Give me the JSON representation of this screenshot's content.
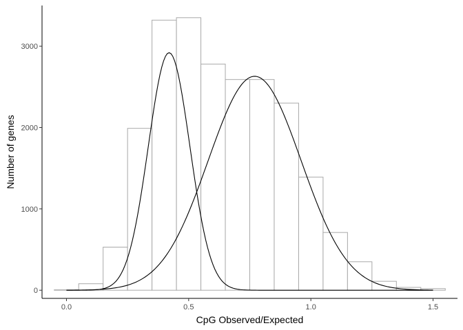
{
  "chart_data": {
    "type": "bar",
    "subtype": "histogram-with-density-curves",
    "title": "",
    "xlabel": "CpG Observed/Expected",
    "ylabel": "Number of genes",
    "xlim": [
      -0.1,
      1.6
    ],
    "ylim": [
      -100,
      3500
    ],
    "x_ticks": [
      {
        "value": 0.0,
        "label": "0.0"
      },
      {
        "value": 0.5,
        "label": "0.5"
      },
      {
        "value": 1.0,
        "label": "1.0"
      },
      {
        "value": 1.5,
        "label": "1.5"
      }
    ],
    "y_ticks": [
      {
        "value": 0,
        "label": "0"
      },
      {
        "value": 1000,
        "label": "1000"
      },
      {
        "value": 2000,
        "label": "2000"
      },
      {
        "value": 3000,
        "label": "3000"
      }
    ],
    "bins": [
      {
        "x0": -0.05,
        "x1": 0.05,
        "count": 5
      },
      {
        "x0": 0.05,
        "x1": 0.15,
        "count": 80
      },
      {
        "x0": 0.15,
        "x1": 0.25,
        "count": 530
      },
      {
        "x0": 0.25,
        "x1": 0.35,
        "count": 1990
      },
      {
        "x0": 0.35,
        "x1": 0.45,
        "count": 3320
      },
      {
        "x0": 0.45,
        "x1": 0.55,
        "count": 3350
      },
      {
        "x0": 0.55,
        "x1": 0.65,
        "count": 2780
      },
      {
        "x0": 0.65,
        "x1": 0.75,
        "count": 2590
      },
      {
        "x0": 0.75,
        "x1": 0.85,
        "count": 2590
      },
      {
        "x0": 0.85,
        "x1": 0.95,
        "count": 2300
      },
      {
        "x0": 0.95,
        "x1": 1.05,
        "count": 1390
      },
      {
        "x0": 1.05,
        "x1": 1.15,
        "count": 710
      },
      {
        "x0": 1.15,
        "x1": 1.25,
        "count": 350
      },
      {
        "x0": 1.25,
        "x1": 1.35,
        "count": 110
      },
      {
        "x0": 1.35,
        "x1": 1.45,
        "count": 35
      },
      {
        "x0": 1.45,
        "x1": 1.55,
        "count": 20
      }
    ],
    "curves": [
      {
        "peak_x": 0.42,
        "peak_y": 2920,
        "sigma": 0.085,
        "x_range": [
          0.0,
          1.5
        ]
      },
      {
        "peak_x": 0.77,
        "peak_y": 2630,
        "sigma": 0.19,
        "x_range": [
          0.0,
          1.5
        ]
      }
    ],
    "grid": false,
    "legend": "none"
  }
}
